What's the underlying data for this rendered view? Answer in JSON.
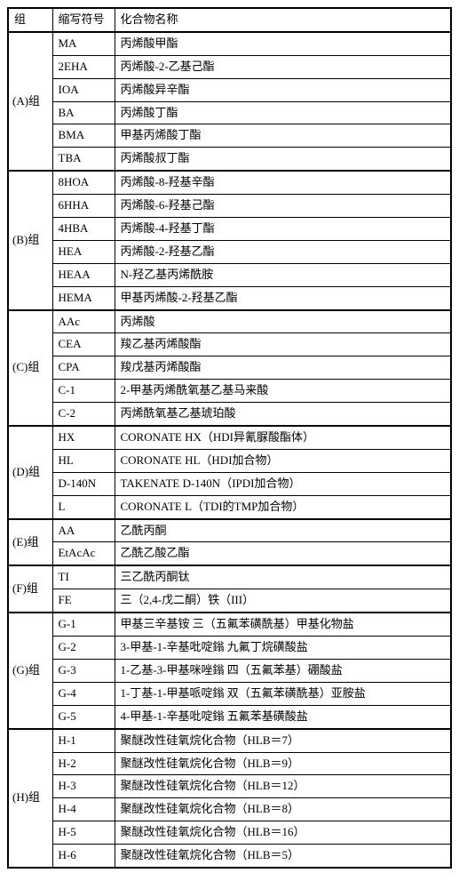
{
  "columns": [
    "组",
    "缩写符号",
    "化合物名称"
  ],
  "groups": [
    {
      "label": "(A)组",
      "rows": [
        {
          "abbr": "MA",
          "name": "丙烯酸甲酯"
        },
        {
          "abbr": "2EHA",
          "name": "丙烯酸-2-乙基己酯"
        },
        {
          "abbr": "IOA",
          "name": "丙烯酸异辛酯"
        },
        {
          "abbr": "BA",
          "name": "丙烯酸丁酯"
        },
        {
          "abbr": "BMA",
          "name": "甲基丙烯酸丁酯"
        },
        {
          "abbr": "TBA",
          "name": "丙烯酸叔丁酯"
        }
      ]
    },
    {
      "label": "(B)组",
      "rows": [
        {
          "abbr": "8HOA",
          "name": "丙烯酸-8-羟基辛酯"
        },
        {
          "abbr": "6HHA",
          "name": "丙烯酸-6-羟基己酯"
        },
        {
          "abbr": "4HBA",
          "name": "丙烯酸-4-羟基丁酯"
        },
        {
          "abbr": "HEA",
          "name": "丙烯酸-2-羟基乙酯"
        },
        {
          "abbr": "HEAA",
          "name": "N-羟乙基丙烯酰胺"
        },
        {
          "abbr": "HEMA",
          "name": "甲基丙烯酸-2-羟基乙酯"
        }
      ]
    },
    {
      "label": "(C)组",
      "rows": [
        {
          "abbr": "AAc",
          "name": "丙烯酸"
        },
        {
          "abbr": "CEA",
          "name": "羧乙基丙烯酸酯"
        },
        {
          "abbr": "CPA",
          "name": "羧戊基丙烯酸酯"
        },
        {
          "abbr": "C-1",
          "name": "2-甲基丙烯酰氧基乙基马来酸"
        },
        {
          "abbr": "C-2",
          "name": "丙烯酰氧基乙基琥珀酸"
        }
      ]
    },
    {
      "label": "(D)组",
      "rows": [
        {
          "abbr": "HX",
          "name": "CORONATE HX（HDI异氰脲酸酯体）"
        },
        {
          "abbr": "HL",
          "name": "CORONATE HL（HDI加合物）"
        },
        {
          "abbr": "D-140N",
          "name": "TAKENATE D-140N（IPDI加合物）"
        },
        {
          "abbr": "L",
          "name": "CORONATE L（TDI的TMP加合物）"
        }
      ]
    },
    {
      "label": "(E)组",
      "rows": [
        {
          "abbr": "AA",
          "name": "乙酰丙酮"
        },
        {
          "abbr": "EtAcAc",
          "name": "乙酰乙酸乙酯"
        }
      ]
    },
    {
      "label": "(F)组",
      "rows": [
        {
          "abbr": "TI",
          "name": "三乙酰丙酮钛"
        },
        {
          "abbr": "FE",
          "name": "三（2,4-戊二酮）铁（III）"
        }
      ]
    },
    {
      "label": "(G)组",
      "rows": [
        {
          "abbr": "G-1",
          "name": "甲基三辛基铵 三（五氟苯磺酰基）甲基化物盐"
        },
        {
          "abbr": "G-2",
          "name": "3-甲基-1-辛基吡啶鎓 九氟丁烷磺酸盐"
        },
        {
          "abbr": "G-3",
          "name": "1-乙基-3-甲基咪唑鎓 四（五氟苯基）硼酸盐"
        },
        {
          "abbr": "G-4",
          "name": "1-丁基-1-甲基哌啶鎓 双（五氟苯磺酰基）亚胺盐"
        },
        {
          "abbr": "G-5",
          "name": "4-甲基-1-辛基吡啶鎓 五氟苯基磺酸盐"
        }
      ]
    },
    {
      "label": "(H)组",
      "rows": [
        {
          "abbr": "H-1",
          "name": "聚醚改性硅氧烷化合物（HLB＝7）"
        },
        {
          "abbr": "H-2",
          "name": "聚醚改性硅氧烷化合物（HLB＝9）"
        },
        {
          "abbr": "H-3",
          "name": "聚醚改性硅氧烷化合物（HLB＝12）"
        },
        {
          "abbr": "H-4",
          "name": "聚醚改性硅氧烷化合物（HLB＝8）"
        },
        {
          "abbr": "H-5",
          "name": "聚醚改性硅氧烷化合物（HLB＝16）"
        },
        {
          "abbr": "H-6",
          "name": "聚醚改性硅氧烷化合物（HLB＝5）"
        }
      ]
    }
  ]
}
